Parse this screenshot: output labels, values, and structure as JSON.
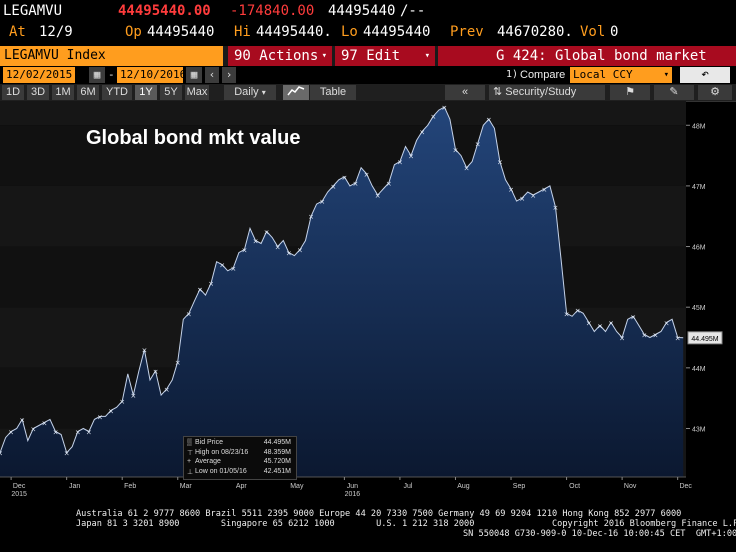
{
  "header": {
    "ticker": "LEGAMVU",
    "last_price": "44495440.00",
    "change": "-174840.00",
    "bid_ask": "44495440",
    "bid_ask_suffix": "/--",
    "at_label": "At",
    "at_value": "12/9",
    "op_label": "Op",
    "op_value": "44495440",
    "hi_label": "Hi",
    "hi_value": "44495440.",
    "lo_label": "Lo",
    "lo_value": "44495440",
    "prev_label": "Prev",
    "prev_value": "44670280.",
    "vol_label": "Vol",
    "vol_value": "0"
  },
  "toolbar": {
    "security_label": "LEGAMVU Index",
    "actions_label": "90 Actions",
    "edit_label": "97 Edit",
    "page_title": "G 424: Global bond market value"
  },
  "dates": {
    "start": "12/02/2015",
    "end": "12/10/2016",
    "compare_label": "Compare",
    "currency": "Local CCY",
    "compare_prefix": "1)"
  },
  "periods": [
    "1D",
    "3D",
    "1M",
    "6M",
    "YTD",
    "1Y",
    "5Y",
    "Max"
  ],
  "period_active": "1Y",
  "frequency": "Daily",
  "table_label": "Table",
  "security_study_label": "Security/Study",
  "colors": {
    "amber": "#ff9d1e",
    "red_button": "#a80b1f",
    "fill_top": "#1d3a66",
    "fill_bottom": "#0e1b33",
    "line": "#c5d3ea"
  },
  "chart_data": {
    "type": "area",
    "title": "Global bond mkt value",
    "y_unit": "M",
    "ylim": [
      42.2,
      48.4
    ],
    "y_ticks": [
      {
        "v": 48,
        "label": "48M"
      },
      {
        "v": 47,
        "label": "47M"
      },
      {
        "v": 46,
        "label": "46M"
      },
      {
        "v": 45,
        "label": "45M"
      },
      {
        "v": 44,
        "label": "44M"
      },
      {
        "v": 43,
        "label": "43M"
      }
    ],
    "x_ticks": [
      {
        "label": "Dec",
        "sub": "2015"
      },
      {
        "label": "Jan",
        "sub": ""
      },
      {
        "label": "Feb",
        "sub": ""
      },
      {
        "label": "Mar",
        "sub": ""
      },
      {
        "label": "Apr",
        "sub": ""
      },
      {
        "label": "May",
        "sub": ""
      },
      {
        "label": "Jun",
        "sub": "2016"
      },
      {
        "label": "Jul",
        "sub": ""
      },
      {
        "label": "Aug",
        "sub": ""
      },
      {
        "label": "Sep",
        "sub": ""
      },
      {
        "label": "Oct",
        "sub": ""
      },
      {
        "label": "Nov",
        "sub": ""
      },
      {
        "label": "Dec",
        "sub": ""
      }
    ],
    "x_tick_positions": [
      0.2,
      1.2,
      2.2,
      3.2,
      4.2,
      5.2,
      6.2,
      7.2,
      8.2,
      9.2,
      10.2,
      11.2,
      12.2
    ],
    "x_range": [
      0,
      12.35
    ],
    "last_value_label": "44.495M",
    "x": [
      0.0,
      0.1,
      0.2,
      0.3,
      0.4,
      0.5,
      0.6,
      0.7,
      0.8,
      0.9,
      1.0,
      1.1,
      1.2,
      1.3,
      1.4,
      1.5,
      1.6,
      1.7,
      1.8,
      1.9,
      2.0,
      2.1,
      2.2,
      2.3,
      2.4,
      2.5,
      2.6,
      2.7,
      2.8,
      2.9,
      3.0,
      3.1,
      3.2,
      3.3,
      3.4,
      3.5,
      3.6,
      3.7,
      3.8,
      3.9,
      4.0,
      4.1,
      4.2,
      4.3,
      4.4,
      4.5,
      4.6,
      4.7,
      4.8,
      4.9,
      5.0,
      5.1,
      5.2,
      5.3,
      5.4,
      5.5,
      5.6,
      5.7,
      5.8,
      5.9,
      6.0,
      6.1,
      6.2,
      6.3,
      6.4,
      6.5,
      6.6,
      6.7,
      6.8,
      6.9,
      7.0,
      7.1,
      7.2,
      7.3,
      7.4,
      7.5,
      7.6,
      7.7,
      7.8,
      7.9,
      8.0,
      8.1,
      8.2,
      8.3,
      8.4,
      8.5,
      8.6,
      8.7,
      8.8,
      8.9,
      9.0,
      9.1,
      9.2,
      9.3,
      9.4,
      9.5,
      9.6,
      9.7,
      9.8,
      9.9,
      10.0,
      10.1,
      10.2,
      10.3,
      10.4,
      10.5,
      10.6,
      10.7,
      10.8,
      10.9,
      11.0,
      11.1,
      11.2,
      11.3,
      11.4,
      11.5,
      11.6,
      11.7,
      11.8,
      11.9,
      12.0,
      12.1,
      12.2,
      12.3
    ],
    "y": [
      42.6,
      42.85,
      42.95,
      43.0,
      43.15,
      42.8,
      43.0,
      43.05,
      43.1,
      43.15,
      42.95,
      42.9,
      42.6,
      42.7,
      42.95,
      43.0,
      42.95,
      43.15,
      43.2,
      43.2,
      43.3,
      43.35,
      43.45,
      43.9,
      43.55,
      43.95,
      44.3,
      43.8,
      43.95,
      43.55,
      43.65,
      43.8,
      44.1,
      44.8,
      44.9,
      45.1,
      45.3,
      45.2,
      45.4,
      45.75,
      45.7,
      45.6,
      45.65,
      45.9,
      45.95,
      46.3,
      46.1,
      46.05,
      46.25,
      46.15,
      46.0,
      46.1,
      45.9,
      45.85,
      45.95,
      46.1,
      46.5,
      46.7,
      46.75,
      46.9,
      47.0,
      47.1,
      47.15,
      47.0,
      47.05,
      47.3,
      47.2,
      47.0,
      46.85,
      46.95,
      47.05,
      47.35,
      47.4,
      47.65,
      47.5,
      47.75,
      47.9,
      48.0,
      48.15,
      48.25,
      48.3,
      48.1,
      47.6,
      47.5,
      47.3,
      47.4,
      47.7,
      48.0,
      48.1,
      47.95,
      47.4,
      47.1,
      46.95,
      46.75,
      46.8,
      46.9,
      46.85,
      46.9,
      46.95,
      47.0,
      46.65,
      45.8,
      44.9,
      44.85,
      44.95,
      44.9,
      44.75,
      44.6,
      44.7,
      44.6,
      44.75,
      44.6,
      44.5,
      44.8,
      44.85,
      44.7,
      44.55,
      44.5,
      44.55,
      44.6,
      44.75,
      44.8,
      44.5,
      44.495
    ]
  },
  "legend": {
    "rows": [
      {
        "icon": "▒",
        "key": "Bid Price",
        "val": "44.495M"
      },
      {
        "icon": "⊤",
        "key": "High on 08/23/16",
        "val": "48.359M"
      },
      {
        "icon": "+",
        "key": "Average",
        "val": "45.720M"
      },
      {
        "icon": "⊥",
        "key": "Low on 01/05/16",
        "val": "42.451M"
      }
    ]
  },
  "footer": {
    "line1": "Australia 61 2 9777 8600 Brazil 5511 2395 9000 Europe 44 20 7330 7500 Germany 49 69 9204 1210 Hong Kong 852 2977 6000",
    "line2": "Japan 81 3 3201 8900        Singapore 65 6212 1000        U.S. 1 212 318 2000               Copyright 2016 Bloomberg Finance L.P.",
    "line3": "SN 550048 G730-909-0 10-Dec-16 10:00:45 CET  GMT+1:00"
  }
}
